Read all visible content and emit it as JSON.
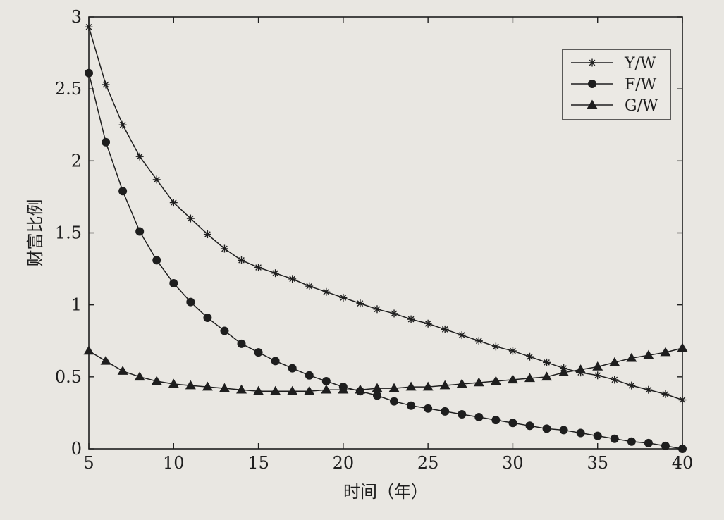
{
  "chart_data": {
    "type": "line",
    "title": "",
    "xlabel": "时间（年）",
    "ylabel": "财富比例",
    "xlim": [
      5,
      40
    ],
    "ylim": [
      0,
      3
    ],
    "xticks": [
      "5",
      "10",
      "15",
      "20",
      "25",
      "30",
      "35",
      "40"
    ],
    "yticks": [
      "0",
      "0.5",
      "1",
      "1.5",
      "2",
      "2.5",
      "3"
    ],
    "legend_position": "top-right",
    "grid": false,
    "x": [
      5,
      6,
      7,
      8,
      9,
      10,
      11,
      12,
      13,
      14,
      15,
      16,
      17,
      18,
      19,
      20,
      21,
      22,
      23,
      24,
      25,
      26,
      27,
      28,
      29,
      30,
      31,
      32,
      33,
      34,
      35,
      36,
      37,
      38,
      39,
      40
    ],
    "series": [
      {
        "name": "Y/W",
        "marker": "asterisk",
        "values": [
          2.93,
          2.53,
          2.25,
          2.03,
          1.87,
          1.71,
          1.6,
          1.49,
          1.39,
          1.31,
          1.26,
          1.22,
          1.18,
          1.13,
          1.09,
          1.05,
          1.01,
          0.97,
          0.94,
          0.9,
          0.87,
          0.83,
          0.79,
          0.75,
          0.71,
          0.68,
          0.64,
          0.6,
          0.56,
          0.53,
          0.51,
          0.48,
          0.44,
          0.41,
          0.38,
          0.34
        ]
      },
      {
        "name": "F/W",
        "marker": "circle",
        "values": [
          2.61,
          2.13,
          1.79,
          1.51,
          1.31,
          1.15,
          1.02,
          0.91,
          0.82,
          0.73,
          0.67,
          0.61,
          0.56,
          0.51,
          0.47,
          0.43,
          0.4,
          0.37,
          0.33,
          0.3,
          0.28,
          0.26,
          0.24,
          0.22,
          0.2,
          0.18,
          0.16,
          0.14,
          0.13,
          0.11,
          0.09,
          0.07,
          0.05,
          0.04,
          0.02,
          0.0
        ]
      },
      {
        "name": "G/W",
        "marker": "triangle",
        "values": [
          0.68,
          0.61,
          0.54,
          0.5,
          0.47,
          0.45,
          0.44,
          0.43,
          0.42,
          0.41,
          0.4,
          0.4,
          0.4,
          0.4,
          0.41,
          0.41,
          0.41,
          0.42,
          0.42,
          0.43,
          0.43,
          0.44,
          0.45,
          0.46,
          0.47,
          0.48,
          0.49,
          0.5,
          0.53,
          0.55,
          0.57,
          0.6,
          0.63,
          0.65,
          0.67,
          0.7
        ]
      }
    ]
  }
}
